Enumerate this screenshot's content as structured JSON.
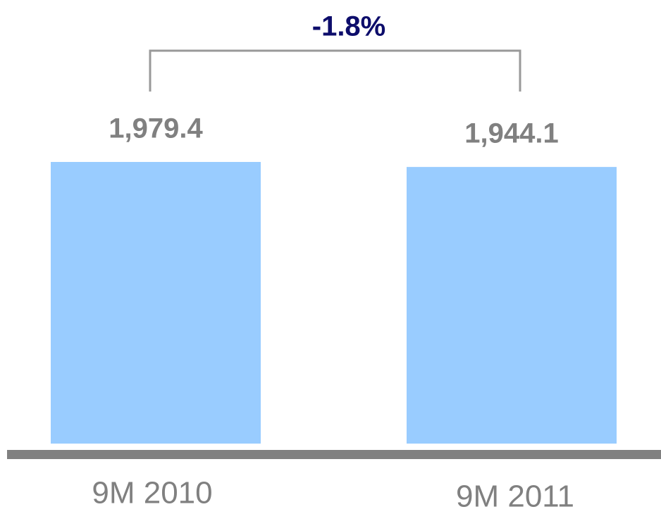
{
  "chart_data": {
    "type": "bar",
    "categories": [
      "9M 2010",
      "9M 2011"
    ],
    "values": [
      1979.4,
      1944.1
    ],
    "value_labels": [
      "1,979.4",
      "1,944.1"
    ],
    "color": "#99ccff",
    "annotation": "-1.8%"
  }
}
